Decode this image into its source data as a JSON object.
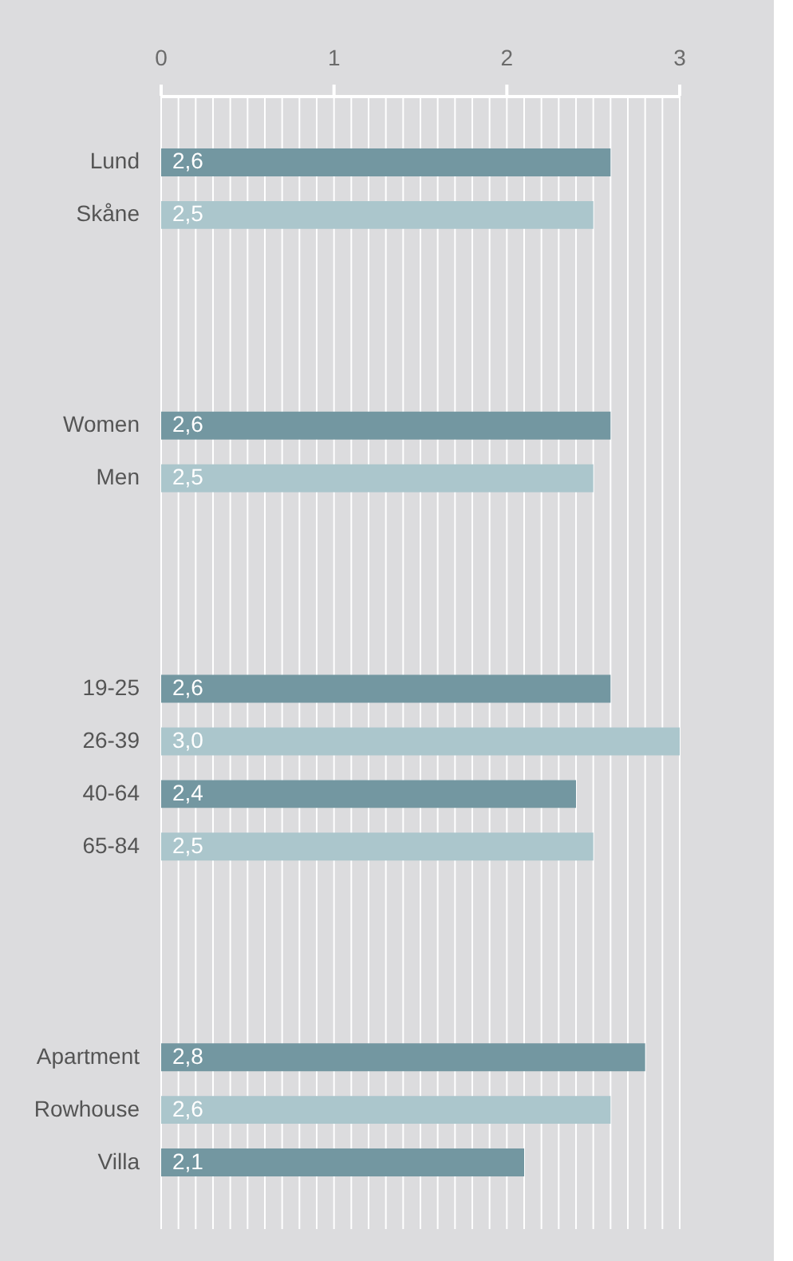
{
  "chart_data": {
    "type": "bar",
    "orientation": "horizontal",
    "categories": [
      "Lund",
      "Skåne",
      null,
      null,
      null,
      "Women",
      "Men",
      null,
      null,
      null,
      "19-25",
      "26-39",
      "40-64",
      "65-84",
      null,
      null,
      null,
      "Apartment",
      "Rowhouse",
      "Villa"
    ],
    "values": [
      2.6,
      2.5,
      null,
      null,
      null,
      2.6,
      2.5,
      null,
      null,
      null,
      2.6,
      3.0,
      2.4,
      2.5,
      null,
      null,
      null,
      2.8,
      2.6,
      2.1
    ],
    "colors": [
      "#7397a1",
      "#abc6cc",
      null,
      null,
      null,
      "#7397a1",
      "#abc6cc",
      null,
      null,
      null,
      "#7397a1",
      "#abc6cc",
      "#7397a1",
      "#abc6cc",
      null,
      null,
      null,
      "#7397a1",
      "#abc6cc",
      "#7397a1"
    ],
    "value_labels": [
      "2,6",
      "2,5",
      null,
      null,
      null,
      "2,6",
      "2,5",
      null,
      null,
      null,
      "2,6",
      "3,0",
      "2,4",
      "2,5",
      null,
      null,
      null,
      "2,8",
      "2,6",
      "2,1"
    ],
    "xlim": [
      0,
      3
    ],
    "xticks": [
      0,
      {
        "value": 0.1,
        "label": null
      },
      {
        "value": 0.2,
        "label": null
      },
      {
        "value": 0.3,
        "label": null
      },
      {
        "value": 0.4,
        "label": null
      },
      {
        "value": 0.5,
        "label": null
      },
      {
        "value": 0.6,
        "label": null
      },
      {
        "value": 0.7,
        "label": null
      },
      {
        "value": 0.8,
        "label": null
      },
      {
        "value": 0.9,
        "label": null
      },
      1,
      {
        "value": 1.1,
        "label": null
      },
      {
        "value": 1.2,
        "label": null
      },
      {
        "value": 1.3,
        "label": null
      },
      {
        "value": 1.4,
        "label": null
      },
      {
        "value": 1.5,
        "label": null
      },
      {
        "value": 1.6,
        "label": null
      },
      {
        "value": 1.7,
        "label": null
      },
      {
        "value": 1.8,
        "label": null
      },
      {
        "value": 1.9,
        "label": null
      },
      2,
      {
        "value": 2.1,
        "label": null
      },
      {
        "value": 2.2,
        "label": null
      },
      {
        "value": 2.3,
        "label": null
      },
      {
        "value": 2.4,
        "label": null
      },
      {
        "value": 2.5,
        "label": null
      },
      {
        "value": 2.6,
        "label": null
      },
      {
        "value": 2.7,
        "label": null
      },
      {
        "value": 2.8,
        "label": null
      },
      {
        "value": 2.9,
        "label": null
      },
      3
    ],
    "grid": "x"
  }
}
